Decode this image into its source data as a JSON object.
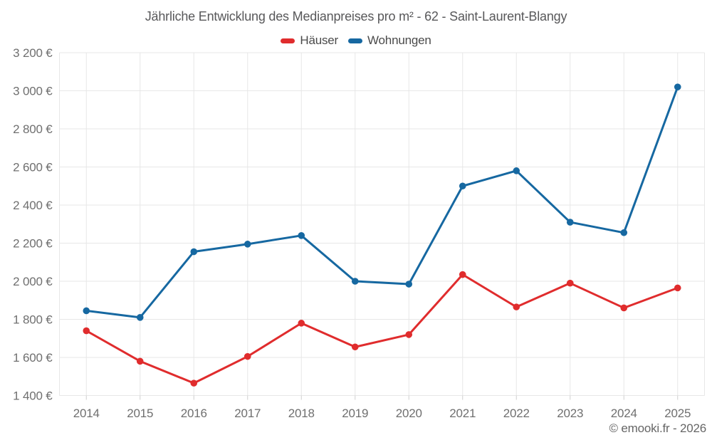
{
  "header": {
    "title": "Jährliche Entwicklung des Medianpreises pro m² - 62 - Saint-Laurent-Blangy"
  },
  "chart_data": {
    "type": "line",
    "title": "Jährliche Entwicklung des Medianpreises pro m² - 62 - Saint-Laurent-Blangy",
    "categories": [
      "2014",
      "2015",
      "2016",
      "2017",
      "2018",
      "2019",
      "2020",
      "2021",
      "2022",
      "2023",
      "2024",
      "2025"
    ],
    "series": [
      {
        "name": "Häuser",
        "color": "#e02c2d",
        "values": [
          1740,
          1580,
          1465,
          1605,
          1780,
          1655,
          1720,
          2035,
          1865,
          1990,
          1860,
          1965
        ]
      },
      {
        "name": "Wohnungen",
        "color": "#1668a1",
        "values": [
          1845,
          1810,
          2155,
          2195,
          2240,
          2000,
          1985,
          2500,
          2580,
          2310,
          2255,
          3020
        ]
      }
    ],
    "ylim": [
      1400,
      3200
    ],
    "ytick_step": 200,
    "ytick_suffix": " €",
    "grid": true,
    "legend_position": "top",
    "colors": {
      "gridline": "#e7e7e7",
      "axis_tick": "#cfcfcf",
      "axis_label": "#6f6f6f"
    }
  },
  "footer": {
    "attribution": "© emooki.fr - 2026"
  }
}
